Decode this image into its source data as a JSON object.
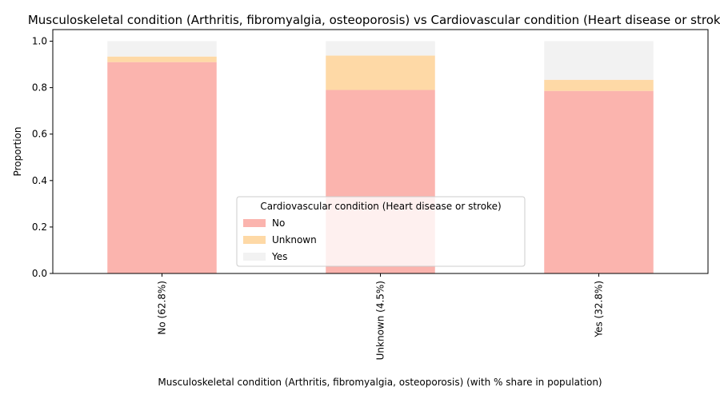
{
  "chart_data": {
    "type": "bar",
    "stacked": true,
    "title": "Musculoskeletal condition (Arthritis, fibromyalgia, osteoporosis) vs Cardiovascular condition (Heart disease or stroke)",
    "xlabel": "Musculoskeletal condition (Arthritis, fibromyalgia, osteoporosis) (with % share in population)",
    "ylabel": "Proportion",
    "ylim": [
      0,
      1.05
    ],
    "yticks": [
      "0.0",
      "0.2",
      "0.4",
      "0.6",
      "0.8",
      "1.0"
    ],
    "categories": [
      "No (62.8%)",
      "Unknown (4.5%)",
      "Yes (32.8%)"
    ],
    "series": [
      {
        "name": "No",
        "values": [
          0.91,
          0.79,
          0.786
        ],
        "color": "#fbb4ae"
      },
      {
        "name": "Unknown",
        "values": [
          0.024,
          0.148,
          0.048
        ],
        "color": "#fed9a6"
      },
      {
        "name": "Yes",
        "values": [
          0.066,
          0.062,
          0.166
        ],
        "color": "#f2f2f2"
      }
    ],
    "legend": {
      "title": "Cardiovascular condition (Heart disease or stroke)",
      "placement": "lower-center"
    },
    "grid": false
  }
}
